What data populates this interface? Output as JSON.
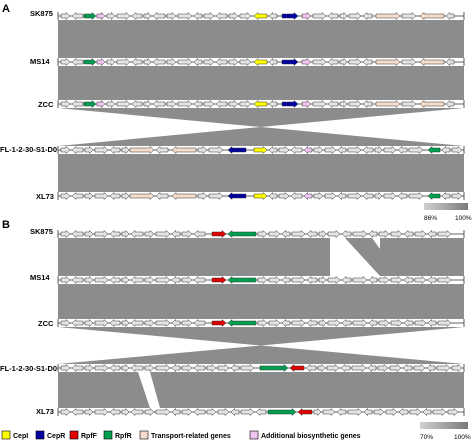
{
  "colors": {
    "CepI": "#ffff00",
    "CepR": "#0000a0",
    "RpfF": "#e00000",
    "RpfR": "#00a050",
    "transport": "#f5dccb",
    "biosynthetic": "#f2c4f2",
    "other": "#e4e4e4",
    "link": "#8c8c8c"
  },
  "panels": [
    {
      "label": "A",
      "rows": [
        "SK875",
        "MS14",
        "ZCC",
        "FL-1-2-30-S1-D0",
        "XL73"
      ],
      "scale": {
        "min": "86%",
        "max": "100%"
      }
    },
    {
      "label": "B",
      "rows": [
        "SK875",
        "MS14",
        "ZCC",
        "FL-1-2-30-S1-D0",
        "XL73"
      ],
      "scale": {
        "min": "70%",
        "max": "100%"
      }
    }
  ],
  "legend": [
    {
      "key": "CepI",
      "label": "CepI",
      "icon": "yellow-square"
    },
    {
      "key": "CepR",
      "label": "CepR",
      "icon": "navy-square"
    },
    {
      "key": "RpfF",
      "label": "RpfF",
      "icon": "red-square"
    },
    {
      "key": "RpfR",
      "label": "RpfR",
      "icon": "green-square"
    },
    {
      "key": "transport",
      "label": "Transport-related genes",
      "icon": "peach-square"
    },
    {
      "key": "biosynthetic",
      "label": "Additional biosynthetic genes",
      "icon": "pink-square"
    }
  ]
}
